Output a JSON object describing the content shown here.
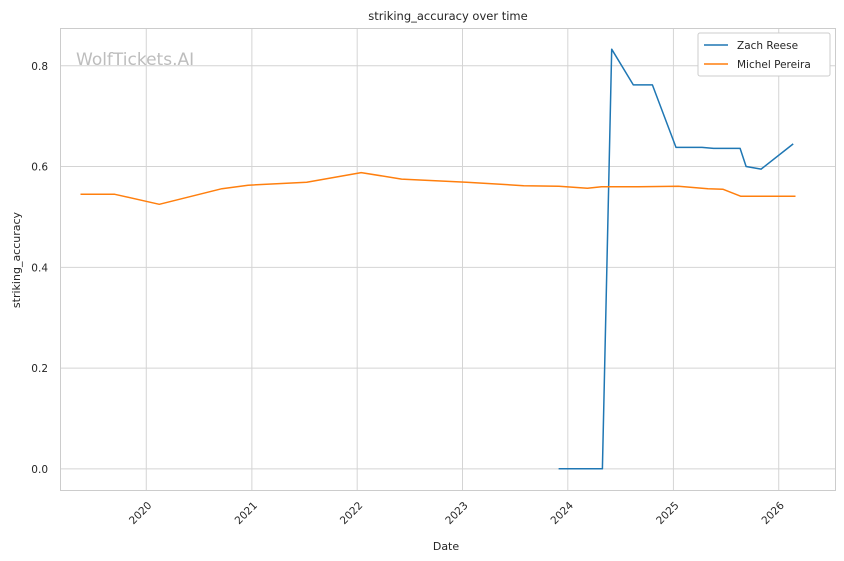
{
  "watermark": "WolfTickets.AI",
  "chart_data": {
    "type": "line",
    "title": "striking_accuracy over time",
    "xlabel": "Date",
    "ylabel": "striking_accuracy",
    "x_ticks": [
      "2020",
      "2021",
      "2022",
      "2023",
      "2024",
      "2025",
      "2026"
    ],
    "y_ticks": [
      "0.0",
      "0.2",
      "0.4",
      "0.6",
      "0.8"
    ],
    "xlim": [
      "2019-03-08",
      "2026-07-15"
    ],
    "ylim": [
      -0.042,
      0.875
    ],
    "grid": true,
    "legend_position": "top-right",
    "series": [
      {
        "name": "Zach Reese",
        "color": "#1f77b4",
        "x": [
          "2023-11-30",
          "2024-04-30",
          "2024-06-01",
          "2024-08-15",
          "2024-10-20",
          "2025-01-10",
          "2025-04-10",
          "2025-05-20",
          "2025-08-20",
          "2025-09-10",
          "2025-11-01",
          "2026-02-20"
        ],
        "y": [
          0.0,
          0.0,
          0.833,
          0.762,
          0.762,
          0.638,
          0.638,
          0.636,
          0.636,
          0.6,
          0.595,
          0.645
        ]
      },
      {
        "name": "Michel Pereira",
        "color": "#ff7f0e",
        "x": [
          "2019-05-18",
          "2019-09-14",
          "2020-02-15",
          "2020-09-19",
          "2020-12-19",
          "2021-07-10",
          "2022-01-15",
          "2022-06-04",
          "2023-01-15",
          "2023-08-01",
          "2023-12-01",
          "2024-03-09",
          "2024-04-27",
          "2024-09-01",
          "2025-01-18",
          "2025-05-01",
          "2025-06-21",
          "2025-08-23",
          "2026-02-28"
        ],
        "y": [
          0.545,
          0.545,
          0.525,
          0.556,
          0.563,
          0.569,
          0.588,
          0.575,
          0.569,
          0.562,
          0.561,
          0.557,
          0.56,
          0.56,
          0.561,
          0.556,
          0.555,
          0.541,
          0.541
        ]
      }
    ]
  }
}
